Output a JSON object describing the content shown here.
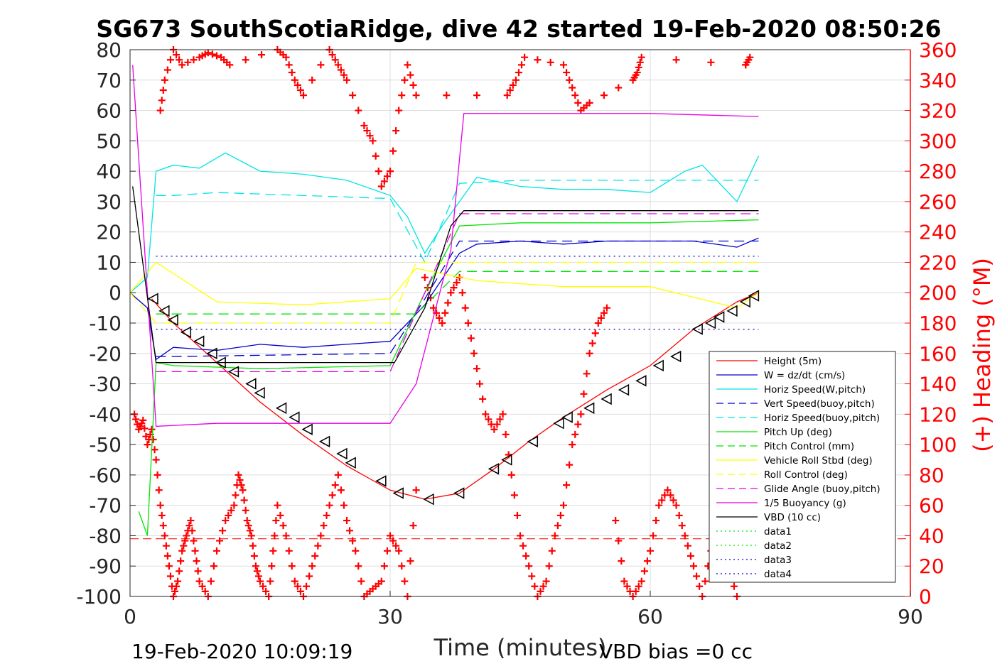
{
  "title": "SG673 SouthScotiaRidge, dive 42 started 19-Feb-2020 08:50:26",
  "footer_left": "19-Feb-2020 10:09:19",
  "footer_right": "VBD bias =0 cc",
  "colors": {
    "height": "#ff0000",
    "w": "#0000cc",
    "horiz_speed": "#00e5e5",
    "pitch": "#00e600",
    "roll": "#ffff00",
    "glide": "#e600e6",
    "buoyancy": "#e600e6",
    "vbd": "#000000",
    "heading": "#ff0000",
    "grid": "#dddddd"
  },
  "chart_data": {
    "type": "line",
    "title": "SG673 SouthScotiaRidge, dive 42 started 19-Feb-2020 08:50:26",
    "xlabel": "Time (minutes)",
    "ylabel": "",
    "ylabel_right": "(+) Heading (°M)",
    "xlim": [
      0,
      90
    ],
    "ylim": [
      -100,
      80
    ],
    "ylim_right": [
      0,
      360
    ],
    "x_ticks": [
      0,
      30,
      60,
      90
    ],
    "y_ticks": [
      80,
      70,
      60,
      50,
      40,
      30,
      20,
      10,
      0,
      -10,
      -20,
      -30,
      -40,
      -50,
      -60,
      -70,
      -80,
      -90,
      -100
    ],
    "y_ticks_right": [
      360,
      340,
      320,
      300,
      280,
      260,
      240,
      220,
      200,
      180,
      160,
      140,
      120,
      100,
      80,
      60,
      40,
      20,
      0
    ],
    "grid": true,
    "legend_position": "lower-right",
    "series": [
      {
        "name": "Height (5m)",
        "style": "solid",
        "color": "#ff0000",
        "x": [
          2.5,
          5,
          10,
          15,
          20,
          25,
          30,
          34,
          38,
          42,
          46,
          50,
          55,
          60,
          65,
          70,
          72.5
        ],
        "y": [
          -2,
          -10,
          -23,
          -36,
          -47,
          -57,
          -65,
          -68,
          -66,
          -58,
          -49,
          -41,
          -32,
          -24,
          -12,
          -3,
          0
        ]
      },
      {
        "name": "W = dz/dt (cm/s)",
        "style": "solid",
        "color": "#0000cc",
        "x": [
          0,
          2,
          3,
          5,
          10,
          15,
          20,
          25,
          30,
          34,
          38,
          40,
          45,
          50,
          55,
          60,
          65,
          70,
          72.5
        ],
        "y": [
          0,
          -5,
          -22,
          -18,
          -19,
          -17,
          -18,
          -17,
          -16,
          -4,
          13,
          16,
          17,
          16,
          17,
          17,
          17,
          15,
          18
        ]
      },
      {
        "name": "Horiz Speed(W,pitch)",
        "style": "solid",
        "color": "#00e5e5",
        "x": [
          0,
          2,
          3,
          5,
          8,
          11,
          15,
          20,
          25,
          30,
          32,
          34,
          36,
          38,
          40,
          45,
          50,
          55,
          60,
          64,
          66,
          70,
          72.5
        ],
        "y": [
          0,
          5,
          40,
          42,
          41,
          46,
          40,
          39,
          37,
          32,
          25,
          13,
          22,
          30,
          38,
          35,
          34,
          34,
          33,
          40,
          42,
          30,
          45
        ]
      },
      {
        "name": "Vert Speed(buoy,pitch)",
        "style": "dash",
        "color": "#0000cc",
        "x": [
          3,
          5,
          30,
          34,
          38,
          72.5
        ],
        "y": [
          -21,
          -21,
          -20,
          -2,
          17,
          17
        ]
      },
      {
        "name": "Horiz Speed(buoy,pitch)",
        "style": "dash",
        "color": "#00e5e5",
        "x": [
          3,
          5,
          10,
          30,
          34,
          38,
          45,
          72.5
        ],
        "y": [
          32,
          32,
          33,
          31,
          10,
          36,
          37,
          37
        ]
      },
      {
        "name": "Pitch Up (deg)",
        "style": "solid",
        "color": "#00e600",
        "x": [
          1,
          2,
          3,
          5,
          15,
          30,
          34,
          38,
          45,
          60,
          72.5
        ],
        "y": [
          -72,
          -80,
          -23,
          -24,
          -25,
          -24,
          0,
          22,
          23,
          23,
          24
        ]
      },
      {
        "name": "Pitch Control (mm)",
        "style": "dash",
        "color": "#00e600",
        "x": [
          3,
          30,
          33,
          38,
          72.5
        ],
        "y": [
          -7,
          -7,
          -7,
          7,
          7
        ]
      },
      {
        "name": "Vehicle Roll Stbd (deg)",
        "style": "solid",
        "color": "#ffff00",
        "x": [
          0,
          3,
          10,
          20,
          30,
          33,
          40,
          50,
          60,
          70,
          72.5
        ],
        "y": [
          0,
          10,
          -3,
          -4,
          -2,
          8,
          4,
          2,
          2,
          -5,
          0
        ]
      },
      {
        "name": "Roll Control (deg)",
        "style": "dash",
        "color": "#ffff00",
        "x": [
          0,
          3,
          30,
          33,
          72.5
        ],
        "y": [
          0,
          -10,
          -10,
          10,
          10
        ]
      },
      {
        "name": "Glide Angle (buoy,pitch)",
        "style": "dash",
        "color": "#e600e6",
        "x": [
          3,
          30,
          34,
          38,
          72.5
        ],
        "y": [
          -26,
          -26,
          0,
          26,
          26
        ]
      },
      {
        "name": "1/5 Buoyancy (g)",
        "style": "solid",
        "color": "#e600e6",
        "x": [
          0.3,
          3,
          10,
          30,
          33,
          37,
          38.5,
          50,
          60,
          72.5
        ],
        "y": [
          75,
          -44,
          -43,
          -43,
          -30,
          14,
          59,
          59,
          59,
          58
        ]
      },
      {
        "name": "VBD (10 cc)",
        "style": "solid",
        "color": "#000000",
        "x": [
          0.3,
          3,
          10,
          30.5,
          34,
          37,
          38.5,
          72.5
        ],
        "y": [
          35,
          -23,
          -23,
          -23,
          -5,
          22,
          27,
          27
        ]
      },
      {
        "name": "data1",
        "style": "dot",
        "color": "#00e600",
        "x": [],
        "y": []
      },
      {
        "name": "data2",
        "style": "dot",
        "color": "#00e600",
        "x": [],
        "y": []
      },
      {
        "name": "data3",
        "style": "dot",
        "color": "#0000cc",
        "x": [
          3,
          72.5
        ],
        "y": [
          12,
          12
        ]
      },
      {
        "name": "data4",
        "style": "dot",
        "color": "#0000cc",
        "x": [
          3,
          72.5
        ],
        "y": [
          -12,
          -12
        ]
      }
    ],
    "heading_reference_line": {
      "y": -81,
      "color": "#ff0000",
      "style": "dash"
    },
    "triangle_markers": {
      "x": [
        2.7,
        4,
        5,
        6.5,
        8,
        9.5,
        10.5,
        12,
        14,
        15,
        17.5,
        19,
        20.5,
        22.5,
        24.5,
        25.5,
        29,
        31,
        34.5,
        38,
        42,
        43.5,
        46.5,
        49.5,
        50.5,
        53,
        55,
        57,
        59,
        61,
        63,
        65.5,
        67,
        68,
        69.5,
        71,
        72
      ],
      "y": [
        -2,
        -6,
        -9,
        -13,
        -16,
        -20,
        -23,
        -26,
        -30,
        -33,
        -38,
        -41,
        -45,
        -49,
        -53,
        -56,
        -62,
        -66,
        -68,
        -66,
        -58,
        -55,
        -49,
        -43,
        -41,
        -38,
        -35,
        -32,
        -29,
        -24,
        -21,
        -12,
        -10,
        -8,
        -6,
        -3,
        -1
      ]
    },
    "heading_series": {
      "name": "Heading",
      "axis": "right",
      "x": [
        0.5,
        1,
        1.5,
        2,
        2.5,
        3,
        3.5,
        4,
        4.5,
        5,
        5.5,
        6,
        6.5,
        7,
        7.5,
        8,
        9,
        10,
        11,
        12,
        12.5,
        13,
        13.5,
        14,
        14.5,
        15,
        16,
        16.5,
        17,
        18,
        19,
        20,
        21,
        22,
        23,
        24,
        25,
        26,
        27,
        28,
        29,
        30,
        31,
        32,
        33,
        34,
        35,
        36,
        37,
        38,
        39,
        40,
        41,
        42,
        43,
        44,
        45,
        46,
        47,
        48,
        49,
        50,
        51,
        52,
        53,
        54,
        55,
        56,
        57,
        58,
        59,
        60,
        61,
        62,
        63,
        64,
        65,
        66,
        67,
        68,
        69,
        70,
        71
      ],
      "y": [
        120,
        110,
        116,
        100,
        110,
        90,
        60,
        40,
        20,
        0,
        10,
        30,
        40,
        50,
        30,
        10,
        0,
        30,
        50,
        60,
        80,
        70,
        50,
        40,
        20,
        10,
        0,
        30,
        60,
        40,
        10,
        0,
        20,
        40,
        60,
        80,
        50,
        30,
        0,
        5,
        10,
        40,
        30,
        0,
        70,
        210,
        190,
        180,
        200,
        210,
        180,
        150,
        120,
        110,
        120,
        80,
        40,
        20,
        0,
        10,
        40,
        60,
        100,
        120,
        160,
        180,
        190,
        50,
        10,
        0,
        10,
        30,
        60,
        70,
        60,
        40,
        20,
        0,
        30,
        40,
        20,
        0,
        350
      ]
    },
    "heading_top": {
      "x": [
        3.5,
        4,
        5,
        6,
        8,
        9,
        10.5,
        11.5,
        17,
        18,
        19,
        20,
        23,
        24,
        25,
        27,
        28,
        29,
        30,
        31,
        32,
        33,
        43.5,
        44.5,
        45.5,
        50,
        51,
        52,
        53,
        58,
        58.5,
        59,
        71,
        71.5
      ],
      "y": [
        320,
        340,
        360,
        350,
        355,
        358,
        355,
        350,
        360,
        355,
        340,
        330,
        360,
        350,
        340,
        310,
        300,
        270,
        280,
        320,
        350,
        330,
        330,
        340,
        355,
        350,
        335,
        320,
        325,
        340,
        345,
        355,
        350,
        355
      ]
    }
  }
}
